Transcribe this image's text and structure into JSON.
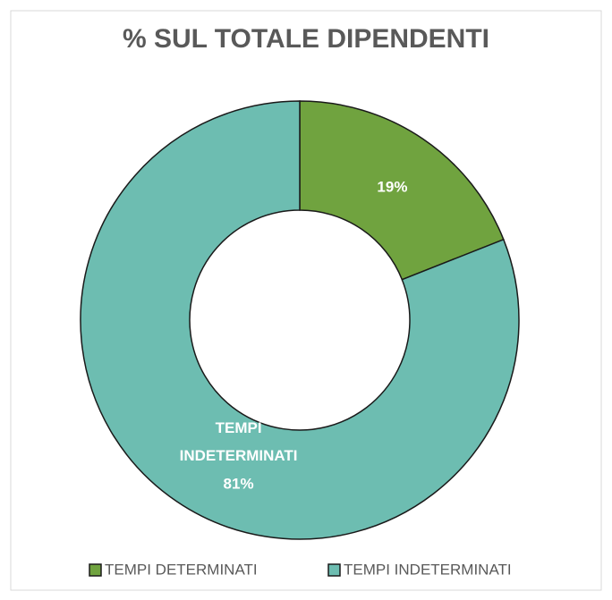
{
  "chart_data": {
    "type": "donut",
    "title": "% SUL TOTALE DIPENDENTI",
    "categories": [
      "TEMPI DETERMINATI",
      "TEMPI INDETERMINATI"
    ],
    "values": [
      19,
      81
    ],
    "value_labels": [
      "19%",
      "81%"
    ],
    "colors": [
      "#70a33f",
      "#6dbdb1"
    ],
    "legend": "bottom"
  }
}
